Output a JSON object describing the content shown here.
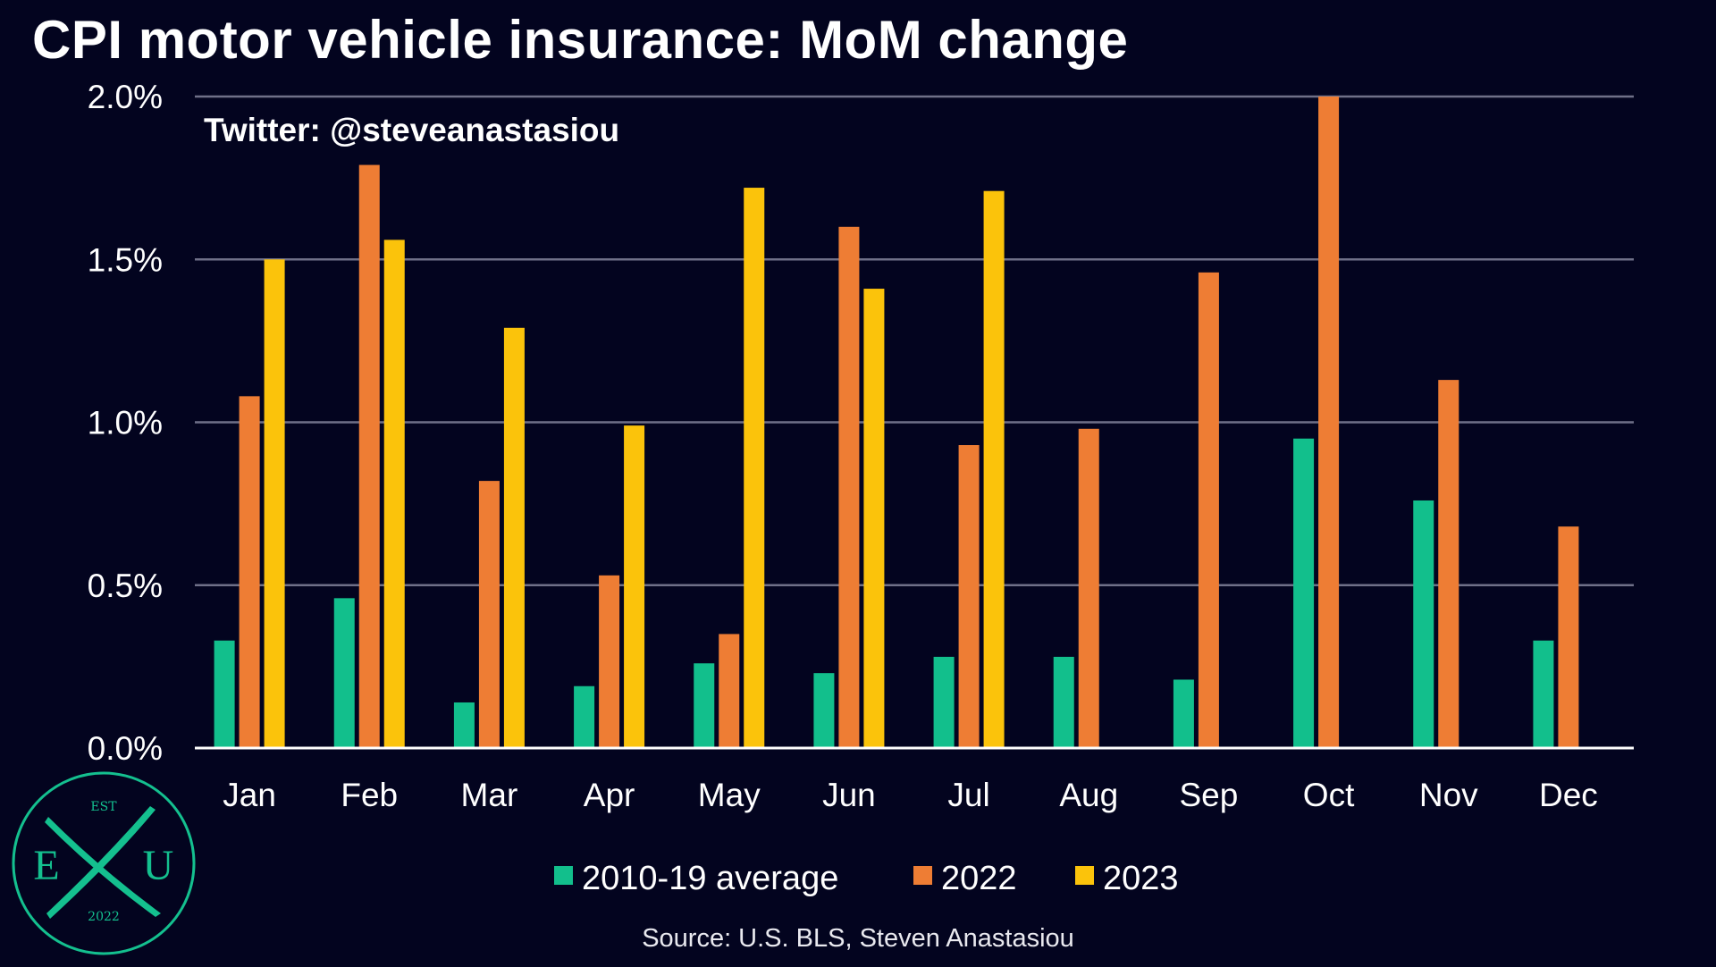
{
  "title": "CPI motor vehicle insurance: MoM change",
  "watermark": "Twitter: @steveanastasiou",
  "source": "Source: U.S. BLS, Steven Anastasiou",
  "logo": {
    "top": "EST",
    "left": "E",
    "right": "U",
    "bottom": "2022"
  },
  "colors": {
    "background": "#03041f",
    "gridline": "#6f7088",
    "axis": "#ffffff",
    "logo": "#14c08f"
  },
  "chart_data": {
    "type": "bar",
    "categories": [
      "Jan",
      "Feb",
      "Mar",
      "Apr",
      "May",
      "Jun",
      "Jul",
      "Aug",
      "Sep",
      "Oct",
      "Nov",
      "Dec"
    ],
    "ylim": [
      0,
      2.0
    ],
    "yticks": [
      0,
      0.5,
      1.0,
      1.5,
      2.0
    ],
    "ytick_labels": [
      "0.0%",
      "0.5%",
      "1.0%",
      "1.5%",
      "2.0%"
    ],
    "grid": true,
    "legend_position": "bottom",
    "series": [
      {
        "name": "2010-19 average",
        "color": "#12bf8c",
        "values": [
          0.33,
          0.46,
          0.14,
          0.19,
          0.26,
          0.23,
          0.28,
          0.28,
          0.21,
          0.95,
          0.76,
          0.33
        ]
      },
      {
        "name": "2022",
        "color": "#ee7d34",
        "values": [
          1.08,
          1.79,
          0.82,
          0.53,
          0.35,
          1.6,
          0.93,
          0.98,
          1.46,
          2.0,
          1.13,
          0.68
        ]
      },
      {
        "name": "2023",
        "color": "#fbc30b",
        "values": [
          1.5,
          1.56,
          1.29,
          0.99,
          1.72,
          1.41,
          1.71,
          null,
          null,
          null,
          null,
          null
        ]
      }
    ]
  }
}
